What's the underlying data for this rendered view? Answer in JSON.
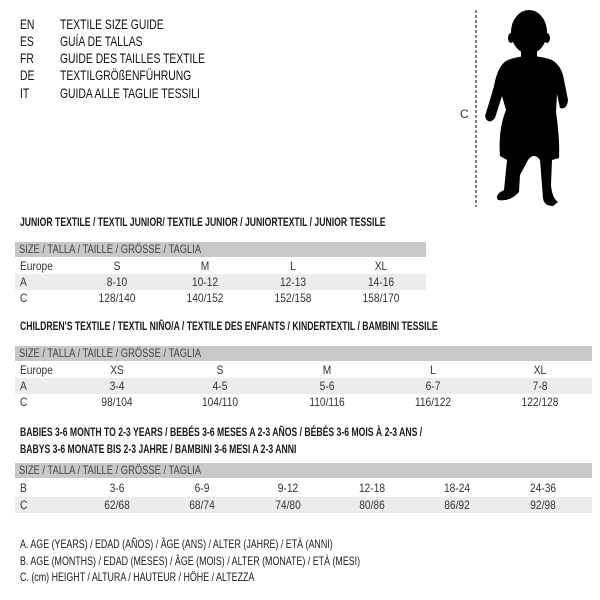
{
  "languages": [
    {
      "code": "EN",
      "title": "TEXTILE SIZE GUIDE"
    },
    {
      "code": "ES",
      "title": "GUÍA DE TALLAS"
    },
    {
      "code": "FR",
      "title": "GUIDE DES TAILLES TEXTILE"
    },
    {
      "code": "DE",
      "title": "TEXTILGRÖßENFÜHRUNG"
    },
    {
      "code": "IT",
      "title": "GUIDA ALLE TAGLIE TESSILI"
    }
  ],
  "figure": {
    "height_label": "C",
    "icon": "child-silhouette"
  },
  "size_header": "SIZE / TALLA / TAILLE / GRÖSSE / TAGLIA",
  "junior": {
    "title": "JUNIOR TEXTILE / TEXTIL JUNIOR/ TEXTILE JUNIOR / JUNIORTEXTIL / JUNIOR TESSILE",
    "rows": [
      {
        "label": "Europe",
        "values": [
          "S",
          "M",
          "L",
          "XL"
        ]
      },
      {
        "label": "A",
        "values": [
          "8-10",
          "10-12",
          "12-13",
          "14-16"
        ]
      },
      {
        "label": "C",
        "values": [
          "128/140",
          "140/152",
          "152/158",
          "158/170"
        ]
      }
    ]
  },
  "children": {
    "title": "CHILDREN'S TEXTILE / TEXTIL NIÑO/A / TEXTILE DES ENFANTS / KINDERTEXTIL / BAMBINI TESSILE",
    "rows": [
      {
        "label": "Europe",
        "values": [
          "XS",
          "S",
          "M",
          "L",
          "XL"
        ]
      },
      {
        "label": "A",
        "values": [
          "3-4",
          "4-5",
          "5-6",
          "6-7",
          "7-8"
        ]
      },
      {
        "label": "C",
        "values": [
          "98/104",
          "104/110",
          "110/116",
          "116/122",
          "122/128"
        ]
      }
    ]
  },
  "babies": {
    "title_line1": "BABIES 3-6 MONTH TO 2-3 YEARS / BEBÉS 3-6 MESES A 2-3 AÑOS / BÉBÉS 3-6 MOIS À 2-3 ANS /",
    "title_line2": "BABYS 3-6 MONATE BIS 2-3 JAHRE / BAMBINI 3-6 MESI A 2-3 ANNI",
    "rows": [
      {
        "label": "B",
        "values": [
          "3-6",
          "6-9",
          "9-12",
          "12-18",
          "18-24",
          "24-36"
        ]
      },
      {
        "label": "C",
        "values": [
          "62/68",
          "68/74",
          "74/80",
          "80/86",
          "86/92",
          "92/98"
        ]
      }
    ]
  },
  "legend": [
    "A. AGE (YEARS) / EDAD (AÑOS) / ÂGE (ANS) / ALTER (JAHRE) / ETÀ (ANNI)",
    "B. AGE (MONTHS) / EDAD (MESES) / ÂGE (MOIS) / ALTER (MONATE) / ETÀ (MESI)",
    "C. (cm) HEIGHT / ALTURA / HAUTEUR / HÖHE / ALTEZZA"
  ],
  "colors": {
    "header_bar": "#c8c8c8",
    "row_shade": "#ececec",
    "text": "#111111"
  }
}
